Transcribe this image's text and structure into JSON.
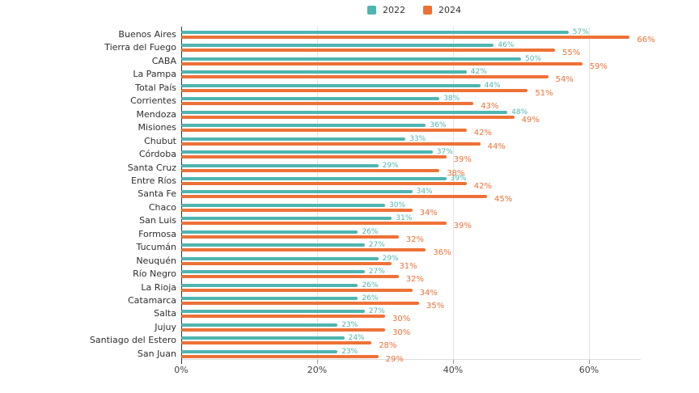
{
  "colors": {
    "series_2022": "#4fb5b0",
    "series_2024": "#ed7137",
    "grid": "#e3e3e3",
    "axis_line": "#333333",
    "tick_text": "#444444",
    "category_text": "#2e2e2e",
    "legend_text": "#333333",
    "background": "#ffffff"
  },
  "legend": {
    "position": "top-center",
    "items": [
      {
        "label": "2022",
        "color": "#4fb5b0"
      },
      {
        "label": "2024",
        "color": "#ed7137"
      }
    ]
  },
  "x_axis": {
    "tick_labels": [
      "0%",
      "20%",
      "40%",
      "60%"
    ],
    "tick_values": [
      0,
      20,
      40,
      60
    ]
  },
  "chart_data": {
    "type": "bar",
    "orientation": "horizontal",
    "title": "",
    "xlabel": "",
    "ylabel": "",
    "value_suffix": "%",
    "xlim": [
      0,
      70
    ],
    "grid": true,
    "legend_position": "top",
    "categories": [
      "Buenos Aires",
      "Tierra del Fuego",
      "CABA",
      "La Pampa",
      "Total País",
      "Corrientes",
      "Mendoza",
      "Misiones",
      "Chubut",
      "Córdoba",
      "Santa Cruz",
      "Entre Ríos",
      "Santa Fe",
      "Chaco",
      "San Luis",
      "Formosa",
      "Tucumán",
      "Neuquén",
      "Río Negro",
      "La Rioja",
      "Catamarca",
      "Salta",
      "Jujuy",
      "Santiago del Estero",
      "San Juan"
    ],
    "series": [
      {
        "name": "2022",
        "color": "#4fb5b0",
        "values": [
          57,
          46,
          50,
          42,
          44,
          38,
          48,
          36,
          33,
          37,
          29,
          39,
          34,
          30,
          31,
          26,
          27,
          29,
          27,
          26,
          26,
          27,
          23,
          24,
          23
        ]
      },
      {
        "name": "2024",
        "color": "#ed7137",
        "values": [
          66,
          55,
          59,
          54,
          51,
          43,
          49,
          42,
          44,
          39,
          38,
          42,
          45,
          34,
          39,
          32,
          36,
          31,
          32,
          34,
          35,
          30,
          30,
          28,
          29
        ]
      }
    ]
  }
}
